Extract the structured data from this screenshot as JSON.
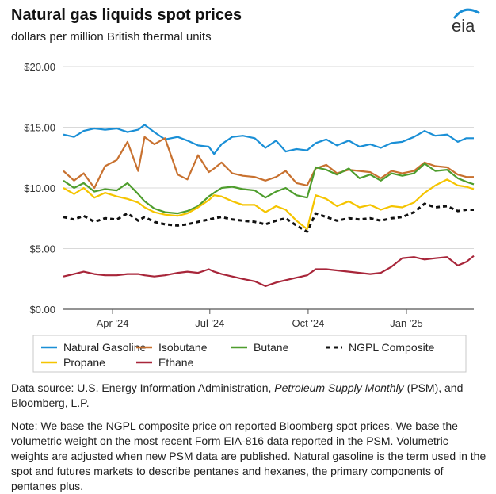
{
  "header": {
    "title": "Natural gas liquids spot prices",
    "subtitle": "dollars per million British thermal units",
    "logo_text": "eia"
  },
  "chart_data": {
    "type": "line",
    "title": "Natural gas liquids spot prices",
    "ylabel": "dollars per million British thermal units",
    "xlabel": "",
    "ylim": [
      0,
      20
    ],
    "yticks": [
      0,
      5,
      10,
      15,
      20
    ],
    "ytick_labels": [
      "$0.00",
      "$5.00",
      "$10.00",
      "$15.00",
      "$20.00"
    ],
    "x_range": [
      "2024-02-15",
      "2025-03-05"
    ],
    "xticks": [
      {
        "date": "2024-04-01",
        "label": "Apr '24"
      },
      {
        "date": "2024-07-01",
        "label": "Jul '24"
      },
      {
        "date": "2024-10-01",
        "label": "Oct '24"
      },
      {
        "date": "2025-01-01",
        "label": "Jan '25"
      }
    ],
    "grid": true,
    "legend_position": "bottom",
    "series": [
      {
        "name": "Natural Gasoline",
        "color": "#1a8fd6",
        "dash": "solid",
        "points": [
          [
            "2024-02-15",
            14.4
          ],
          [
            "2024-02-25",
            14.2
          ],
          [
            "2024-03-05",
            14.7
          ],
          [
            "2024-03-15",
            14.9
          ],
          [
            "2024-03-25",
            14.8
          ],
          [
            "2024-04-05",
            14.9
          ],
          [
            "2024-04-15",
            14.6
          ],
          [
            "2024-04-25",
            14.8
          ],
          [
            "2024-05-01",
            15.2
          ],
          [
            "2024-05-10",
            14.6
          ],
          [
            "2024-05-20",
            14.0
          ],
          [
            "2024-06-01",
            14.2
          ],
          [
            "2024-06-10",
            13.9
          ],
          [
            "2024-06-20",
            13.5
          ],
          [
            "2024-06-30",
            13.4
          ],
          [
            "2024-07-05",
            12.8
          ],
          [
            "2024-07-12",
            13.6
          ],
          [
            "2024-07-22",
            14.2
          ],
          [
            "2024-08-01",
            14.3
          ],
          [
            "2024-08-12",
            14.1
          ],
          [
            "2024-08-22",
            13.3
          ],
          [
            "2024-09-01",
            13.9
          ],
          [
            "2024-09-10",
            13.0
          ],
          [
            "2024-09-20",
            13.2
          ],
          [
            "2024-09-30",
            13.1
          ],
          [
            "2024-10-08",
            13.7
          ],
          [
            "2024-10-18",
            14.0
          ],
          [
            "2024-10-28",
            13.5
          ],
          [
            "2024-11-08",
            13.9
          ],
          [
            "2024-11-18",
            13.4
          ],
          [
            "2024-11-28",
            13.6
          ],
          [
            "2024-12-08",
            13.3
          ],
          [
            "2024-12-18",
            13.7
          ],
          [
            "2024-12-28",
            13.8
          ],
          [
            "2025-01-08",
            14.2
          ],
          [
            "2025-01-18",
            14.7
          ],
          [
            "2025-01-28",
            14.3
          ],
          [
            "2025-02-08",
            14.4
          ],
          [
            "2025-02-18",
            13.8
          ],
          [
            "2025-02-26",
            14.1
          ],
          [
            "2025-03-05",
            14.1
          ]
        ]
      },
      {
        "name": "Isobutane",
        "color": "#c8712f",
        "dash": "solid",
        "points": [
          [
            "2024-02-15",
            11.4
          ],
          [
            "2024-02-25",
            10.6
          ],
          [
            "2024-03-05",
            11.2
          ],
          [
            "2024-03-15",
            10.0
          ],
          [
            "2024-03-25",
            11.8
          ],
          [
            "2024-04-05",
            12.3
          ],
          [
            "2024-04-15",
            13.8
          ],
          [
            "2024-04-25",
            11.4
          ],
          [
            "2024-05-01",
            14.2
          ],
          [
            "2024-05-10",
            13.6
          ],
          [
            "2024-05-20",
            14.1
          ],
          [
            "2024-06-01",
            11.1
          ],
          [
            "2024-06-10",
            10.7
          ],
          [
            "2024-06-20",
            12.7
          ],
          [
            "2024-06-30",
            11.3
          ],
          [
            "2024-07-05",
            11.6
          ],
          [
            "2024-07-12",
            12.1
          ],
          [
            "2024-07-22",
            11.2
          ],
          [
            "2024-08-01",
            11.0
          ],
          [
            "2024-08-12",
            10.9
          ],
          [
            "2024-08-22",
            10.6
          ],
          [
            "2024-09-01",
            10.9
          ],
          [
            "2024-09-10",
            11.4
          ],
          [
            "2024-09-20",
            10.4
          ],
          [
            "2024-09-30",
            10.2
          ],
          [
            "2024-10-08",
            11.6
          ],
          [
            "2024-10-18",
            11.9
          ],
          [
            "2024-10-28",
            11.2
          ],
          [
            "2024-11-08",
            11.5
          ],
          [
            "2024-11-18",
            11.4
          ],
          [
            "2024-11-28",
            11.3
          ],
          [
            "2024-12-08",
            10.8
          ],
          [
            "2024-12-18",
            11.4
          ],
          [
            "2024-12-28",
            11.2
          ],
          [
            "2025-01-08",
            11.4
          ],
          [
            "2025-01-18",
            12.1
          ],
          [
            "2025-01-28",
            11.8
          ],
          [
            "2025-02-08",
            11.7
          ],
          [
            "2025-02-18",
            11.1
          ],
          [
            "2025-02-26",
            10.9
          ],
          [
            "2025-03-05",
            10.9
          ]
        ]
      },
      {
        "name": "Butane",
        "color": "#4e9d2d",
        "dash": "solid",
        "points": [
          [
            "2024-02-15",
            10.6
          ],
          [
            "2024-02-25",
            10.0
          ],
          [
            "2024-03-05",
            10.4
          ],
          [
            "2024-03-15",
            9.7
          ],
          [
            "2024-03-25",
            9.9
          ],
          [
            "2024-04-05",
            9.8
          ],
          [
            "2024-04-15",
            10.4
          ],
          [
            "2024-04-25",
            9.5
          ],
          [
            "2024-05-01",
            8.9
          ],
          [
            "2024-05-10",
            8.3
          ],
          [
            "2024-05-20",
            8.0
          ],
          [
            "2024-06-01",
            7.9
          ],
          [
            "2024-06-10",
            8.1
          ],
          [
            "2024-06-20",
            8.5
          ],
          [
            "2024-06-30",
            9.3
          ],
          [
            "2024-07-05",
            9.6
          ],
          [
            "2024-07-12",
            10.0
          ],
          [
            "2024-07-22",
            10.1
          ],
          [
            "2024-08-01",
            9.9
          ],
          [
            "2024-08-12",
            9.8
          ],
          [
            "2024-08-22",
            9.2
          ],
          [
            "2024-09-01",
            9.7
          ],
          [
            "2024-09-10",
            10.0
          ],
          [
            "2024-09-20",
            9.4
          ],
          [
            "2024-09-30",
            9.2
          ],
          [
            "2024-10-08",
            11.7
          ],
          [
            "2024-10-18",
            11.5
          ],
          [
            "2024-10-28",
            11.1
          ],
          [
            "2024-11-08",
            11.6
          ],
          [
            "2024-11-18",
            10.8
          ],
          [
            "2024-11-28",
            11.1
          ],
          [
            "2024-12-08",
            10.6
          ],
          [
            "2024-12-18",
            11.2
          ],
          [
            "2024-12-28",
            11.0
          ],
          [
            "2025-01-08",
            11.2
          ],
          [
            "2025-01-18",
            12.0
          ],
          [
            "2025-01-28",
            11.4
          ],
          [
            "2025-02-08",
            11.5
          ],
          [
            "2025-02-18",
            10.8
          ],
          [
            "2025-02-26",
            10.5
          ],
          [
            "2025-03-05",
            10.3
          ]
        ]
      },
      {
        "name": "NGPL Composite",
        "color": "#111111",
        "dash": "dashed",
        "points": [
          [
            "2024-02-15",
            7.6
          ],
          [
            "2024-02-25",
            7.4
          ],
          [
            "2024-03-05",
            7.7
          ],
          [
            "2024-03-15",
            7.2
          ],
          [
            "2024-03-25",
            7.5
          ],
          [
            "2024-04-05",
            7.4
          ],
          [
            "2024-04-15",
            7.9
          ],
          [
            "2024-04-25",
            7.3
          ],
          [
            "2024-05-01",
            7.6
          ],
          [
            "2024-05-10",
            7.2
          ],
          [
            "2024-05-20",
            7.0
          ],
          [
            "2024-06-01",
            6.9
          ],
          [
            "2024-06-10",
            7.0
          ],
          [
            "2024-06-20",
            7.2
          ],
          [
            "2024-06-30",
            7.4
          ],
          [
            "2024-07-05",
            7.5
          ],
          [
            "2024-07-12",
            7.6
          ],
          [
            "2024-07-22",
            7.4
          ],
          [
            "2024-08-01",
            7.3
          ],
          [
            "2024-08-12",
            7.2
          ],
          [
            "2024-08-22",
            7.0
          ],
          [
            "2024-09-01",
            7.3
          ],
          [
            "2024-09-10",
            7.5
          ],
          [
            "2024-09-20",
            6.9
          ],
          [
            "2024-09-30",
            6.4
          ],
          [
            "2024-10-08",
            7.9
          ],
          [
            "2024-10-18",
            7.6
          ],
          [
            "2024-10-28",
            7.3
          ],
          [
            "2024-11-08",
            7.5
          ],
          [
            "2024-11-18",
            7.4
          ],
          [
            "2024-11-28",
            7.5
          ],
          [
            "2024-12-08",
            7.3
          ],
          [
            "2024-12-18",
            7.5
          ],
          [
            "2024-12-28",
            7.6
          ],
          [
            "2025-01-08",
            8.0
          ],
          [
            "2025-01-18",
            8.7
          ],
          [
            "2025-01-28",
            8.4
          ],
          [
            "2025-02-08",
            8.5
          ],
          [
            "2025-02-18",
            8.1
          ],
          [
            "2025-02-26",
            8.2
          ],
          [
            "2025-03-05",
            8.2
          ]
        ]
      },
      {
        "name": "Propane",
        "color": "#f5c400",
        "dash": "solid",
        "points": [
          [
            "2024-02-15",
            10.0
          ],
          [
            "2024-02-25",
            9.5
          ],
          [
            "2024-03-05",
            10.0
          ],
          [
            "2024-03-15",
            9.2
          ],
          [
            "2024-03-25",
            9.6
          ],
          [
            "2024-04-05",
            9.3
          ],
          [
            "2024-04-15",
            9.1
          ],
          [
            "2024-04-25",
            8.8
          ],
          [
            "2024-05-01",
            8.4
          ],
          [
            "2024-05-10",
            8.0
          ],
          [
            "2024-05-20",
            7.8
          ],
          [
            "2024-06-01",
            7.7
          ],
          [
            "2024-06-10",
            7.9
          ],
          [
            "2024-06-20",
            8.4
          ],
          [
            "2024-06-30",
            9.0
          ],
          [
            "2024-07-05",
            9.4
          ],
          [
            "2024-07-12",
            9.3
          ],
          [
            "2024-07-22",
            8.9
          ],
          [
            "2024-08-01",
            8.6
          ],
          [
            "2024-08-12",
            8.6
          ],
          [
            "2024-08-22",
            8.0
          ],
          [
            "2024-09-01",
            8.5
          ],
          [
            "2024-09-10",
            8.2
          ],
          [
            "2024-09-20",
            7.3
          ],
          [
            "2024-09-30",
            6.6
          ],
          [
            "2024-10-08",
            9.4
          ],
          [
            "2024-10-18",
            9.1
          ],
          [
            "2024-10-28",
            8.5
          ],
          [
            "2024-11-08",
            8.9
          ],
          [
            "2024-11-18",
            8.4
          ],
          [
            "2024-11-28",
            8.6
          ],
          [
            "2024-12-08",
            8.2
          ],
          [
            "2024-12-18",
            8.5
          ],
          [
            "2024-12-28",
            8.4
          ],
          [
            "2025-01-08",
            8.8
          ],
          [
            "2025-01-18",
            9.6
          ],
          [
            "2025-01-28",
            10.2
          ],
          [
            "2025-02-08",
            10.7
          ],
          [
            "2025-02-18",
            10.2
          ],
          [
            "2025-02-26",
            10.1
          ],
          [
            "2025-03-05",
            9.9
          ]
        ]
      },
      {
        "name": "Ethane",
        "color": "#a8263a",
        "dash": "solid",
        "points": [
          [
            "2024-02-15",
            2.7
          ],
          [
            "2024-02-25",
            2.9
          ],
          [
            "2024-03-05",
            3.1
          ],
          [
            "2024-03-15",
            2.9
          ],
          [
            "2024-03-25",
            2.8
          ],
          [
            "2024-04-05",
            2.8
          ],
          [
            "2024-04-15",
            2.9
          ],
          [
            "2024-04-25",
            2.9
          ],
          [
            "2024-05-01",
            2.8
          ],
          [
            "2024-05-10",
            2.7
          ],
          [
            "2024-05-20",
            2.8
          ],
          [
            "2024-06-01",
            3.0
          ],
          [
            "2024-06-10",
            3.1
          ],
          [
            "2024-06-20",
            3.0
          ],
          [
            "2024-06-30",
            3.3
          ],
          [
            "2024-07-05",
            3.1
          ],
          [
            "2024-07-12",
            2.9
          ],
          [
            "2024-07-22",
            2.7
          ],
          [
            "2024-08-01",
            2.5
          ],
          [
            "2024-08-12",
            2.3
          ],
          [
            "2024-08-22",
            1.9
          ],
          [
            "2024-09-01",
            2.2
          ],
          [
            "2024-09-10",
            2.4
          ],
          [
            "2024-09-20",
            2.6
          ],
          [
            "2024-09-30",
            2.8
          ],
          [
            "2024-10-08",
            3.3
          ],
          [
            "2024-10-18",
            3.3
          ],
          [
            "2024-10-28",
            3.2
          ],
          [
            "2024-11-08",
            3.1
          ],
          [
            "2024-11-18",
            3.0
          ],
          [
            "2024-11-28",
            2.9
          ],
          [
            "2024-12-08",
            3.0
          ],
          [
            "2024-12-18",
            3.5
          ],
          [
            "2024-12-28",
            4.2
          ],
          [
            "2025-01-08",
            4.3
          ],
          [
            "2025-01-18",
            4.1
          ],
          [
            "2025-01-28",
            4.2
          ],
          [
            "2025-02-08",
            4.3
          ],
          [
            "2025-02-18",
            3.6
          ],
          [
            "2025-02-26",
            3.9
          ],
          [
            "2025-03-05",
            4.4
          ]
        ]
      }
    ]
  },
  "footer": {
    "source_prefix": "Data source: U.S. Energy Information Administration, ",
    "source_italic": "Petroleum Supply Monthly",
    "source_suffix": " (PSM), and Bloomberg, L.P.",
    "note": "Note: We base the NGPL composite price on reported Bloomberg spot prices. We base the volumetric weight on the most recent Form EIA-816 data reported in the PSM. Volumetric weights are adjusted when new PSM data are published. Natural gasoline is the term used in the spot and futures markets to describe pentanes and hexanes, the primary components of pentanes plus."
  },
  "colors": {
    "grid": "#d9d9d9",
    "axis": "#555555",
    "legend_border": "#c8c8c8",
    "logo_blue": "#1a8fd6",
    "logo_text": "#333333"
  }
}
